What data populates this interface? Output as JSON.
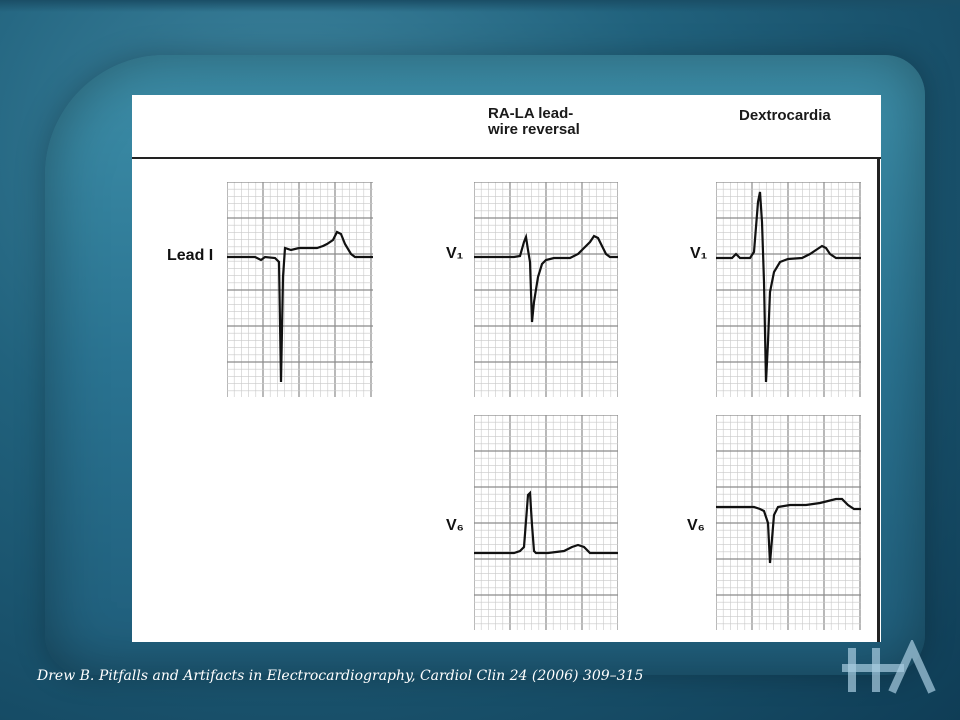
{
  "slide": {
    "columns": {
      "reversal_title": "RA-LA lead-\nwire reversal",
      "dextro_title": "Dextrocardia"
    },
    "labels": {
      "lead_i": "Lead I",
      "v1_reversal": "V₁",
      "v1_dextro": "V₁",
      "v6_reversal": "V₆",
      "v6_dextro": "V₆"
    },
    "citation": "Drew B. Pitfalls and Artifacts in Electrocardiography, Cardiol Clin 24 (2006) 309–315",
    "logo_text": "HA"
  },
  "colors": {
    "grid_minor": "#c9c9c9",
    "grid_major": "#8a8a8a",
    "trace": "#111111",
    "background": "#21627d"
  }
}
